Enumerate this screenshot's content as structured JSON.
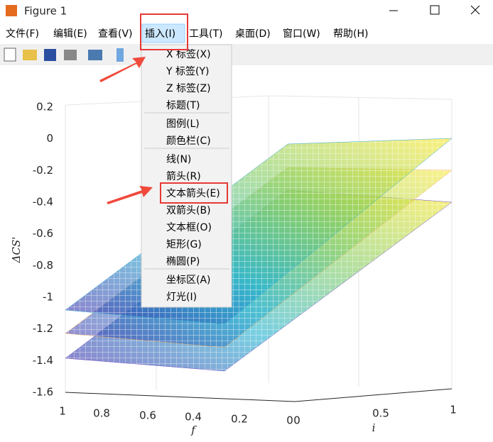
{
  "window": {
    "title": "Figure 1"
  },
  "menu": [
    "文件(F)",
    "编辑(E)",
    "查看(V)",
    "插入(I)",
    "工具(T)",
    "桌面(D)",
    "窗口(W)",
    "帮助(H)"
  ],
  "dropdown": [
    [
      "X 标签(X)",
      "Y 标签(Y)",
      "Z 标签(Z)",
      "标题(T)"
    ],
    [
      "图例(L)",
      "颜色栏(C)"
    ],
    [
      "线(N)",
      "箭头(R)",
      "文本箭头(E)",
      "双箭头(B)",
      "文本框(O)",
      "矩形(G)",
      "椭圆(P)"
    ],
    [
      "坐标区(A)",
      "灯光(I)"
    ]
  ],
  "axes": {
    "zlabel": "ΔCS'",
    "zticks": [
      "0.2",
      "0",
      "-0.2",
      "-0.4",
      "-0.6",
      "-0.8",
      "-1",
      "-1.2",
      "-1.4",
      "-1.6"
    ],
    "xlabel": "f",
    "xticks": [
      "1",
      "0.8",
      "0.6",
      "0.4",
      "0.2",
      "0"
    ],
    "ylabel": "i",
    "yticks": [
      "0",
      "0.5",
      "1"
    ]
  }
}
